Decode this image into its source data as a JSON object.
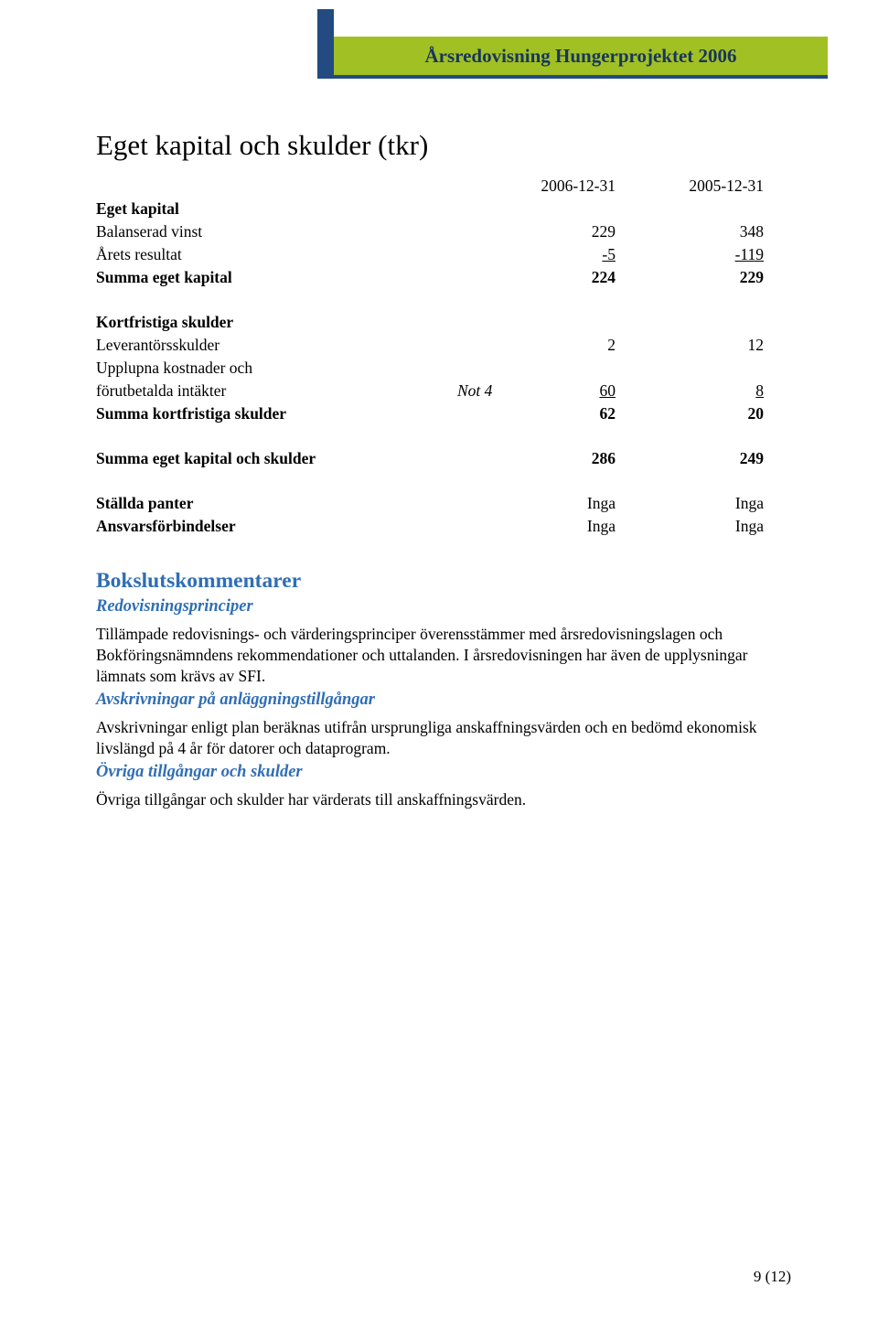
{
  "header": {
    "title": "Årsredovisning Hungerprojektet 2006",
    "band_green": "#a1c024",
    "band_blue": "#234a81",
    "text_color": "#17365d"
  },
  "section_title": "Eget kapital och skulder (tkr)",
  "columns": {
    "c1": "2006-12-31",
    "c2": "2005-12-31"
  },
  "table": {
    "eget_kapital_header": "Eget kapital",
    "balanserad_vinst": {
      "label": "Balanserad vinst",
      "c1": "229",
      "c2": "348"
    },
    "arets_resultat": {
      "label": "Årets resultat",
      "c1": "-5",
      "c2": "-119"
    },
    "summa_eget_kapital": {
      "label": "Summa eget kapital",
      "c1": "224",
      "c2": "229"
    },
    "kortfristiga_header": "Kortfristiga skulder",
    "leverantorsskulder": {
      "label": "Leverantörsskulder",
      "c1": "2",
      "c2": "12"
    },
    "upplupna1": "Upplupna kostnader och",
    "upplupna2": {
      "label": "förutbetalda intäkter",
      "note": "Not 4",
      "c1": "60",
      "c2": "8"
    },
    "summa_kortfristiga": {
      "label": "Summa kortfristiga skulder",
      "c1": "62",
      "c2": "20"
    },
    "summa_total": {
      "label": "Summa eget kapital och skulder",
      "c1": "286",
      "c2": "249"
    },
    "stallda": {
      "label": "Ställda panter",
      "c1": "Inga",
      "c2": "Inga"
    },
    "ansvar": {
      "label": "Ansvarsförbindelser",
      "c1": "Inga",
      "c2": "Inga"
    }
  },
  "closing": {
    "title": "Bokslutskommentarer",
    "heading_color": "#2f6eb5",
    "sub1": "Redovisningsprinciper",
    "para1": "Tillämpade redovisnings- och värderingsprinciper överensstämmer med årsredovisningslagen och Bokföringsnämndens rekommendationer och uttalanden. I årsredovisningen har även de upplysningar lämnats som krävs av SFI.",
    "sub2": "Avskrivningar på anläggningstillgångar",
    "para2": "Avskrivningar enligt plan beräknas utifrån ursprungliga anskaffningsvärden och en bedömd ekonomisk livslängd på 4 år för datorer och dataprogram.",
    "sub3": "Övriga tillgångar och skulder",
    "para3": "Övriga tillgångar och skulder har värderats till anskaffningsvärden."
  },
  "footer": "9 (12)"
}
